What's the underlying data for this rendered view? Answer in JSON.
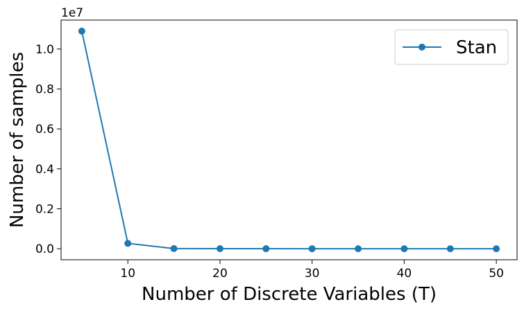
{
  "chart_data": {
    "type": "line",
    "title": "",
    "xlabel": "Number of Discrete Variables (T)",
    "ylabel": "Number of samples",
    "y_offset_label": "1e7",
    "xlim": [
      2.75,
      52.25
    ],
    "ylim": [
      -0.055,
      1.145
    ],
    "x_ticks": [
      10,
      20,
      30,
      40,
      50
    ],
    "x_tick_labels": [
      "10",
      "20",
      "30",
      "40",
      "50"
    ],
    "y_ticks": [
      0.0,
      0.2,
      0.4,
      0.6,
      0.8,
      1.0
    ],
    "y_tick_labels": [
      "0.0",
      "0.2",
      "0.4",
      "0.6",
      "0.8",
      "1.0"
    ],
    "grid": false,
    "legend_position": "top-right",
    "series": [
      {
        "name": "Stan",
        "color": "#1f77b4",
        "marker": "circle",
        "x": [
          5,
          10,
          15,
          20,
          25,
          30,
          35,
          40,
          45,
          50
        ],
        "y": [
          1.09,
          0.027,
          0.001,
          0.0005,
          0.0003,
          0.0002,
          0.0001,
          0.0001,
          0.0001,
          0.0001
        ]
      }
    ]
  }
}
